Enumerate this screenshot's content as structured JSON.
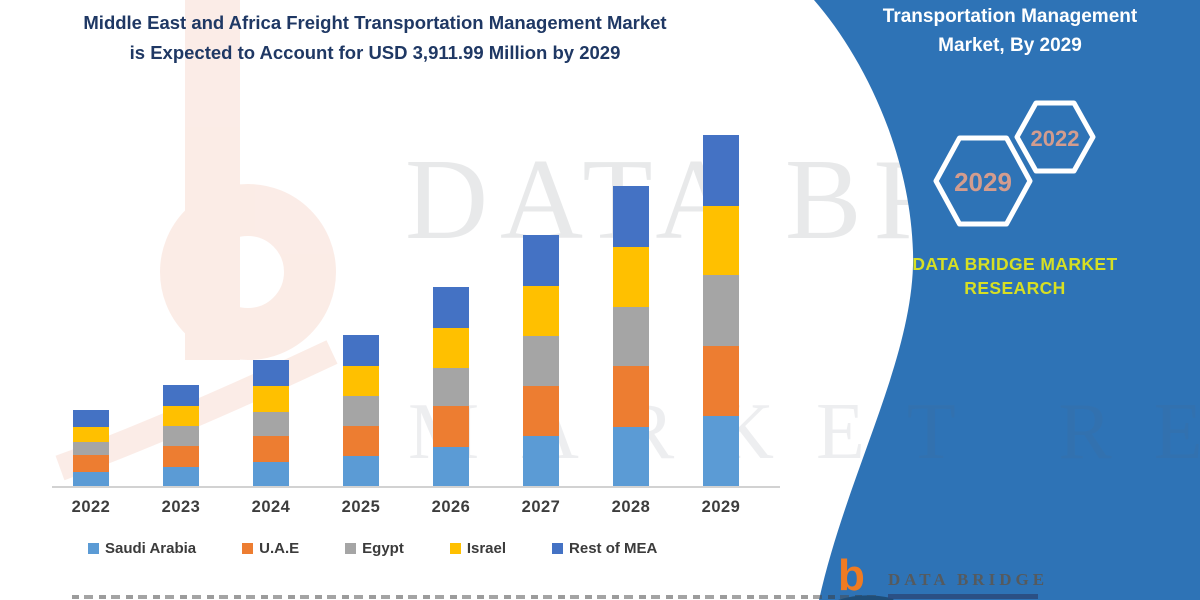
{
  "title": {
    "line1": "Middle East and Africa Freight Transportation Management Market",
    "line2": "is Expected to Account for USD 3,911.99 Million by 2029",
    "color": "#1f3864"
  },
  "chart_data": {
    "type": "bar",
    "stacked": true,
    "unit": "USD Million",
    "categories": [
      "2022",
      "2023",
      "2024",
      "2025",
      "2026",
      "2027",
      "2028",
      "2029"
    ],
    "series": [
      {
        "name": "Saudi Arabia",
        "color": "#5b9bd5",
        "values": [
          160,
          215,
          270,
          330,
          435,
          555,
          660,
          780
        ]
      },
      {
        "name": "U.A.E",
        "color": "#ed7d31",
        "values": [
          185,
          235,
          285,
          340,
          455,
          565,
          675,
          780
        ]
      },
      {
        "name": "Egypt",
        "color": "#a5a5a5",
        "values": [
          145,
          215,
          275,
          330,
          425,
          550,
          660,
          792
        ]
      },
      {
        "name": "Israel",
        "color": "#ffc000",
        "values": [
          170,
          225,
          280,
          335,
          450,
          560,
          670,
          770
        ]
      },
      {
        "name": "Rest of MEA",
        "color": "#4472c4",
        "values": [
          190,
          235,
          290,
          345,
          455,
          570,
          675,
          789.99
        ]
      }
    ],
    "totals": [
      850,
      1125,
      1400,
      1680,
      2220,
      2800,
      3340,
      3911.99
    ],
    "ylim": [
      0,
      3911.99
    ],
    "gridlines": false,
    "legend_position": "bottom"
  },
  "panel": {
    "bg_color": "#2e73b6",
    "heading": "Transportation Management Market, By 2029",
    "hexagons": [
      {
        "label": "2029"
      },
      {
        "label": "2022"
      }
    ],
    "hexagon_label_color": "#d39c8e",
    "brand": "DATA BRIDGE MARKET RESEARCH",
    "brand_color": "#d7df23"
  },
  "watermarks": {
    "text_line1": "DATA BRIDGE",
    "text_line2": "MARKET RESEARCH"
  },
  "footer_logo": {
    "letter": "b",
    "name": "DATA BRIDGE"
  }
}
